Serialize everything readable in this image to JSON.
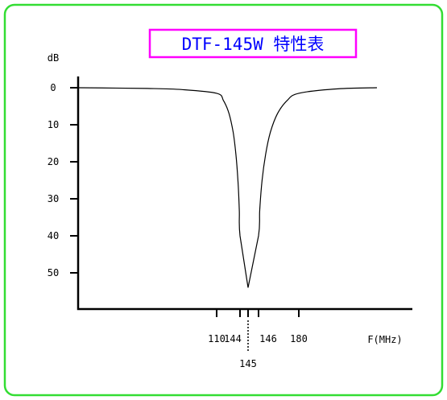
{
  "chart_data": {
    "type": "line",
    "title": "DTF-145W 特性表",
    "ylabel": "dB",
    "xlabel": "F(MHz)",
    "y_inverted": true,
    "ylim": [
      0,
      60
    ],
    "y_ticks": [
      {
        "value": 0,
        "label": "0"
      },
      {
        "value": 10,
        "label": "10"
      },
      {
        "value": 20,
        "label": "20"
      },
      {
        "value": 30,
        "label": "30"
      },
      {
        "value": 40,
        "label": "40"
      },
      {
        "value": 50,
        "label": "50"
      }
    ],
    "x_ticks": [
      {
        "value": 110,
        "label": "110"
      },
      {
        "value": 144,
        "label": "144"
      },
      {
        "value": 145,
        "label": "145"
      },
      {
        "value": 146,
        "label": "146"
      },
      {
        "value": 180,
        "label": "180"
      }
    ],
    "series": [
      {
        "name": "",
        "notch_center_mhz": 145,
        "points": [
          [
            70,
            0
          ],
          [
            90,
            0.2
          ],
          [
            100,
            0.5
          ],
          [
            110,
            1.5
          ],
          [
            120,
            3.5
          ],
          [
            128,
            7
          ],
          [
            134,
            12
          ],
          [
            138,
            18
          ],
          [
            141,
            25
          ],
          [
            143,
            33
          ],
          [
            144,
            40
          ],
          [
            145,
            54
          ],
          [
            146,
            40
          ],
          [
            147,
            33
          ],
          [
            149,
            25
          ],
          [
            152,
            18
          ],
          [
            156,
            12
          ],
          [
            162,
            7
          ],
          [
            170,
            3.5
          ],
          [
            180,
            1.5
          ],
          [
            195,
            0.3
          ],
          [
            210,
            0
          ]
        ]
      }
    ],
    "colors": {
      "frame": "#33dd33",
      "title_border": "#ff00ff",
      "title_text": "#0000ff",
      "curve": "#000000"
    }
  }
}
